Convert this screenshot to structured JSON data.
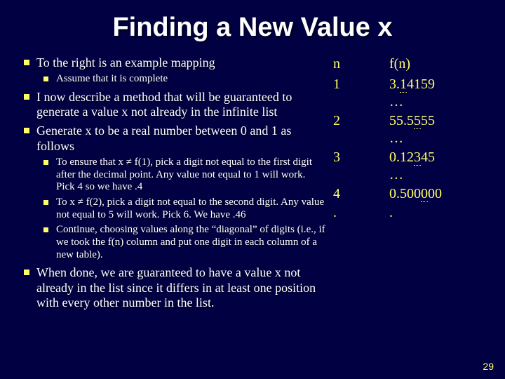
{
  "title": "Finding a New Value x",
  "bullets": {
    "b1": "To the right is an example mapping",
    "b1a": "Assume that it is complete",
    "b2": "I now describe a method that will be guaranteed to generate a value x not already in the infinite list",
    "b3": "Generate x to be a real number between 0 and 1 as follows",
    "b3a": "To ensure that x ≠ f(1), pick a digit not equal to the first digit after the decimal point. Any value not equal to 1 will work. Pick 4 so we have .4",
    "b3b": "To x ≠ f(2), pick a digit not equal to the second digit. Any value not equal to 5 will work. Pick 6. We have .46",
    "b3c": "Continue, choosing values along the “diagonal” of digits (i.e., if we took the f(n) column and put one digit in each column of a new table).",
    "b4": "When done, we are guaranteed to have a value x not already in the list since it differs in at least one position with every other number in the list."
  },
  "table": {
    "head_n": "n",
    "head_f": "f(n)",
    "rows": [
      {
        "n": "1",
        "f_pre": "3.",
        "f_u": "1",
        "f_post": "4159",
        "f_tail": "…"
      },
      {
        "n": "2",
        "f_pre": "55.5",
        "f_u": "5",
        "f_post": "55",
        "f_tail": "…"
      },
      {
        "n": "3",
        "f_pre": "0.12",
        "f_u": "3",
        "f_post": "45",
        "f_tail": "…"
      },
      {
        "n": "4",
        "f_pre": "0.500",
        "f_u": "0",
        "f_post": "00",
        "f_tail": ""
      },
      {
        "n": ".",
        "f_pre": ".",
        "f_u": "",
        "f_post": "",
        "f_tail": ""
      }
    ]
  },
  "page_number": "29",
  "colors": {
    "background": "#000043",
    "text": "#ffffff",
    "accent": "#ffff66"
  }
}
